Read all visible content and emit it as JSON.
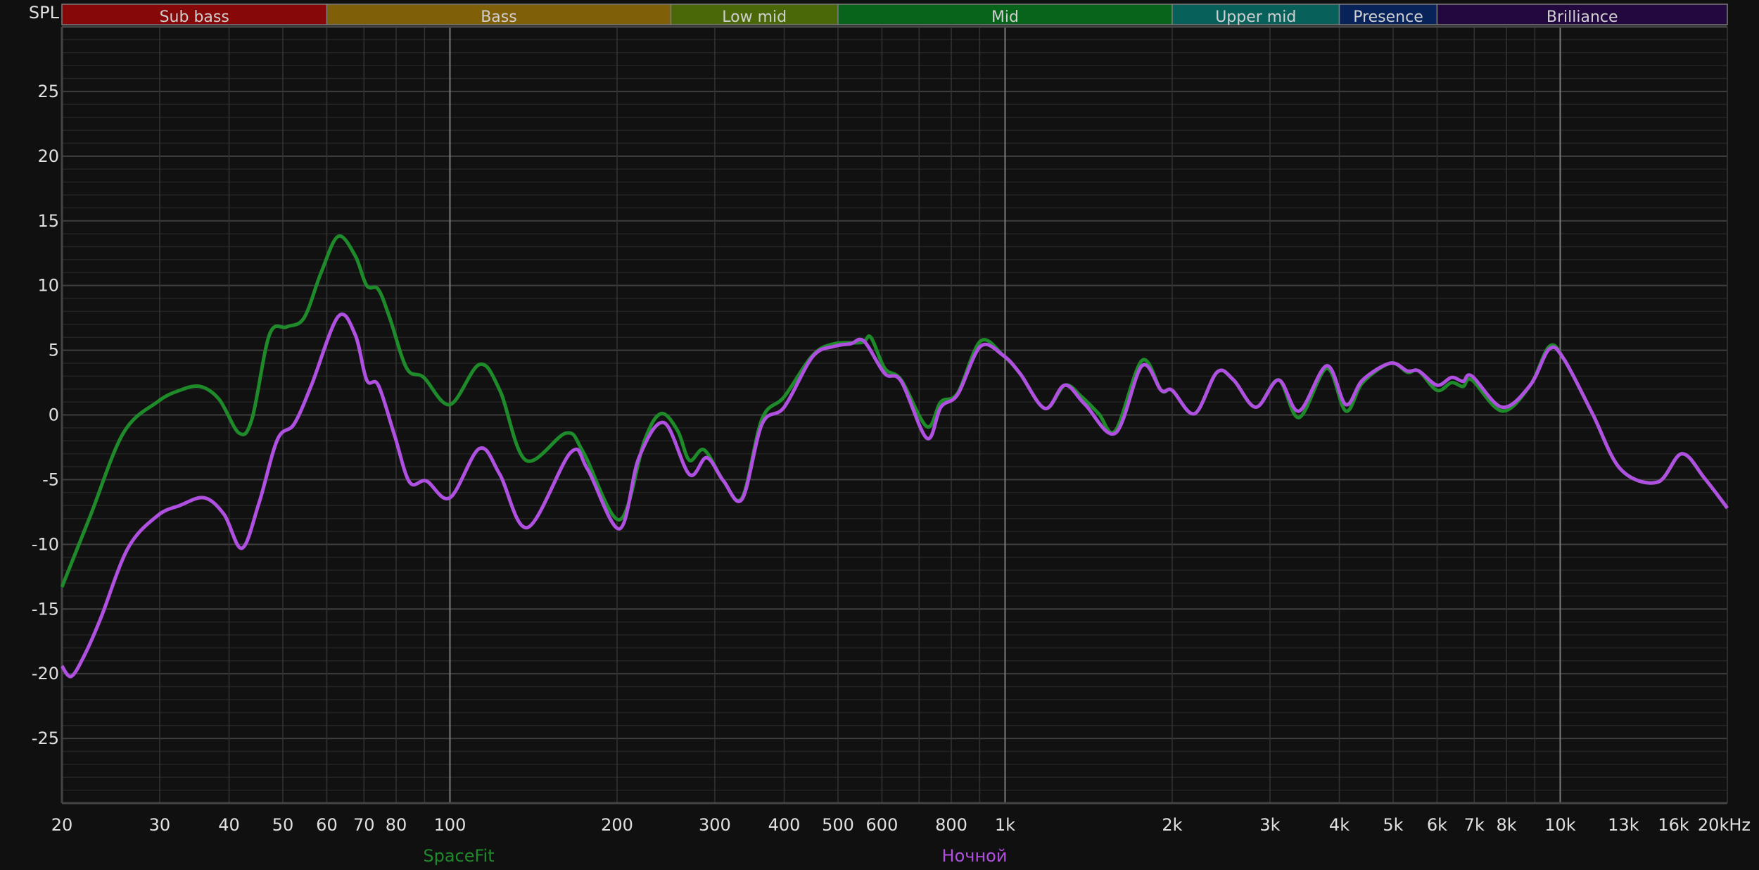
{
  "chart_data": {
    "type": "line",
    "ylabel": "SPL",
    "xscale": "log",
    "xlim": [
      20,
      20000
    ],
    "ylim": [
      -30,
      30
    ],
    "grid": true,
    "legend_placement": "bottom",
    "background": "#101010",
    "yticks": [
      {
        "value": 25,
        "label": "25"
      },
      {
        "value": 20,
        "label": "20"
      },
      {
        "value": 15,
        "label": "15"
      },
      {
        "value": 10,
        "label": "10"
      },
      {
        "value": 5,
        "label": "5"
      },
      {
        "value": 0,
        "label": "0"
      },
      {
        "value": -5,
        "label": "-5"
      },
      {
        "value": -10,
        "label": "-10"
      },
      {
        "value": -15,
        "label": "-15"
      },
      {
        "value": -20,
        "label": "-20"
      },
      {
        "value": -25,
        "label": "-25"
      }
    ],
    "xticks": [
      {
        "value": 20,
        "label": "20"
      },
      {
        "value": 30,
        "label": "30"
      },
      {
        "value": 40,
        "label": "40"
      },
      {
        "value": 50,
        "label": "50"
      },
      {
        "value": 60,
        "label": "60"
      },
      {
        "value": 70,
        "label": "70"
      },
      {
        "value": 80,
        "label": "80"
      },
      {
        "value": 100,
        "label": "100"
      },
      {
        "value": 200,
        "label": "200"
      },
      {
        "value": 300,
        "label": "300"
      },
      {
        "value": 400,
        "label": "400"
      },
      {
        "value": 500,
        "label": "500"
      },
      {
        "value": 600,
        "label": "600"
      },
      {
        "value": 800,
        "label": "800"
      },
      {
        "value": 1000,
        "label": "1k"
      },
      {
        "value": 2000,
        "label": "2k"
      },
      {
        "value": 3000,
        "label": "3k"
      },
      {
        "value": 4000,
        "label": "4k"
      },
      {
        "value": 5000,
        "label": "5k"
      },
      {
        "value": 6000,
        "label": "6k"
      },
      {
        "value": 7000,
        "label": "7k"
      },
      {
        "value": 8000,
        "label": "8k"
      },
      {
        "value": 10000,
        "label": "10k"
      },
      {
        "value": 13000,
        "label": "13k",
        "dim": true
      },
      {
        "value": 16000,
        "label": "16k",
        "dim": true
      },
      {
        "value": 20000,
        "label": "20kHz"
      }
    ],
    "bands": [
      {
        "label": "Sub bass",
        "from": 20,
        "to": 60,
        "color": "#870808"
      },
      {
        "label": "Bass",
        "from": 60,
        "to": 250,
        "color": "#7f5f08"
      },
      {
        "label": "Low mid",
        "from": 250,
        "to": 500,
        "color": "#4a6808"
      },
      {
        "label": "Mid",
        "from": 500,
        "to": 2000,
        "color": "#08641a"
      },
      {
        "label": "Upper mid",
        "from": 2000,
        "to": 4000,
        "color": "#08605a"
      },
      {
        "label": "Presence",
        "from": 4000,
        "to": 6000,
        "color": "#08235a"
      },
      {
        "label": "Brilliance",
        "from": 6000,
        "to": 20000,
        "color": "#22083f"
      }
    ],
    "series": [
      {
        "name": "SpaceFit",
        "color": "#1e8a2a",
        "x": [
          20,
          22.5,
          25.8,
          29.7,
          32.6,
          35.5,
          38.4,
          41.7,
          44,
          47.3,
          50.8,
          54.6,
          58.6,
          62.9,
          67.5,
          70.8,
          74.3,
          77.9,
          83.6,
          89.7,
          100,
          113,
          123,
          137,
          162,
          174,
          202,
          224,
          240,
          257,
          270,
          287,
          311,
          336,
          365,
          400,
          450,
          492,
          552,
          573,
          607,
          650,
          723,
          766,
          822,
          903,
          992,
          1064,
          1180,
          1281,
          1374,
          1474,
          1581,
          1764,
          1911,
          2000,
          2195,
          2408,
          2580,
          2830,
          3110,
          3385,
          3798,
          4110,
          4407,
          4945,
          5305,
          5561,
          6000,
          6373,
          6681,
          6934,
          7860,
          8830,
          9560,
          10160,
          11430,
          12850,
          14960,
          16560,
          18200,
          20000
        ],
        "y": [
          -13.3,
          -7.8,
          -1.4,
          1.0,
          1.9,
          2.2,
          1.2,
          -1.4,
          -0.3,
          6.2,
          6.8,
          7.5,
          11.0,
          13.8,
          12.3,
          10.0,
          9.7,
          7.5,
          3.6,
          2.9,
          0.8,
          3.9,
          1.9,
          -3.5,
          -1.4,
          -2.9,
          -8.1,
          -2.0,
          0.1,
          -1.2,
          -3.5,
          -2.7,
          -5.1,
          -6.4,
          -0.3,
          1.4,
          4.6,
          5.5,
          5.6,
          6.0,
          3.6,
          2.7,
          -0.9,
          1.0,
          1.7,
          5.7,
          4.6,
          3.2,
          0.5,
          2.3,
          1.4,
          0.1,
          -1.2,
          4.2,
          1.9,
          1.9,
          0.1,
          3.3,
          2.7,
          0.6,
          2.7,
          -0.2,
          3.6,
          0.3,
          2.5,
          4.0,
          3.3,
          3.4,
          1.9,
          2.5,
          2.2,
          2.7,
          0.3,
          2.3,
          5.3,
          4.3,
          0.1,
          -4.2,
          -5.2,
          -3.0,
          -4.9,
          -7.2
        ]
      },
      {
        "name": "Ночной",
        "color": "#b050e0",
        "x": [
          20,
          20.8,
          22,
          23.5,
          26.3,
          29.7,
          32.6,
          36.1,
          39.2,
          42.2,
          45.3,
          48.9,
          52.4,
          56.3,
          62.9,
          67.5,
          70.8,
          74.3,
          79.5,
          84.6,
          90.7,
          100,
          113,
          123,
          138,
          165,
          177,
          202,
          219,
          243,
          270,
          290,
          311,
          336,
          365,
          400,
          450,
          492,
          527,
          557,
          607,
          650,
          723,
          766,
          822,
          903,
          992,
          1064,
          1180,
          1281,
          1394,
          1581,
          1764,
          1911,
          2000,
          2195,
          2408,
          2580,
          2830,
          3110,
          3385,
          3798,
          4110,
          4407,
          4945,
          5305,
          5561,
          6000,
          6373,
          6681,
          6934,
          7860,
          8830,
          9560,
          10160,
          11430,
          12850,
          14960,
          16560,
          18200,
          20000
        ],
        "y": [
          -19.4,
          -20.2,
          -18.5,
          -15.7,
          -10.3,
          -7.8,
          -7.0,
          -6.4,
          -7.7,
          -10.3,
          -6.8,
          -1.9,
          -0.7,
          2.3,
          7.6,
          6.2,
          2.7,
          2.3,
          -1.6,
          -5.2,
          -5.1,
          -6.4,
          -2.6,
          -4.6,
          -8.7,
          -2.9,
          -4.2,
          -8.8,
          -3.3,
          -0.6,
          -4.6,
          -3.3,
          -5.1,
          -6.5,
          -0.7,
          0.6,
          4.5,
          5.3,
          5.5,
          5.7,
          3.2,
          2.6,
          -1.8,
          0.6,
          1.6,
          5.3,
          4.6,
          3.2,
          0.5,
          2.3,
          0.8,
          -1.4,
          3.8,
          1.9,
          1.9,
          0.1,
          3.3,
          2.7,
          0.6,
          2.7,
          0.3,
          3.8,
          0.8,
          2.7,
          4.0,
          3.4,
          3.4,
          2.3,
          2.9,
          2.6,
          3.0,
          0.6,
          2.3,
          5.1,
          4.3,
          0.1,
          -4.2,
          -5.2,
          -3.0,
          -4.9,
          -7.2
        ]
      }
    ]
  }
}
